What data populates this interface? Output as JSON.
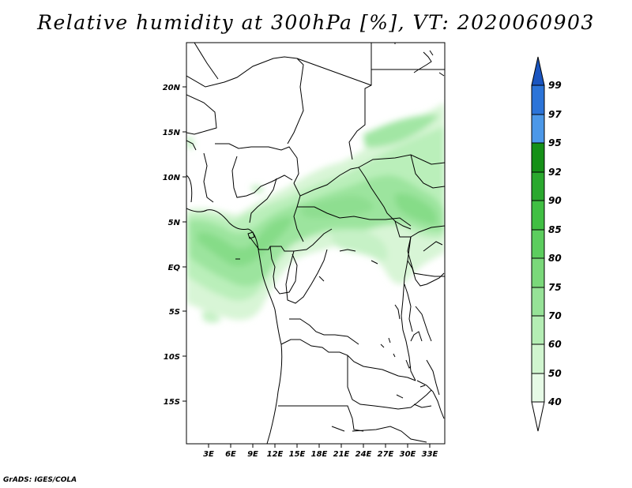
{
  "title": "Relative humidity at 300hPa [%], VT: 2020060903",
  "credit": "GrADS: IGES/COLA",
  "lat_labels": [
    "20N",
    "15N",
    "10N",
    "5N",
    "EQ",
    "5S",
    "10S",
    "15S"
  ],
  "lon_labels": [
    "3E",
    "6E",
    "9E",
    "12E",
    "15E",
    "18E",
    "21E",
    "24E",
    "27E",
    "30E",
    "33E"
  ],
  "colorbar": {
    "levels": [
      "40",
      "50",
      "60",
      "70",
      "75",
      "80",
      "85",
      "90",
      "92",
      "95",
      "97",
      "99"
    ],
    "colors": [
      "#ffffff",
      "#e6fae6",
      "#d0f5cf",
      "#b4edb4",
      "#96e297",
      "#7ad87a",
      "#5ccd5e",
      "#40bf43",
      "#2aa82e",
      "#159017",
      "#4c98e8",
      "#2c74d8",
      "#1a55c0"
    ]
  },
  "map": {
    "region": "Central Africa",
    "lon_range": [
      0,
      35
    ],
    "lat_range": [
      -20,
      25
    ]
  }
}
